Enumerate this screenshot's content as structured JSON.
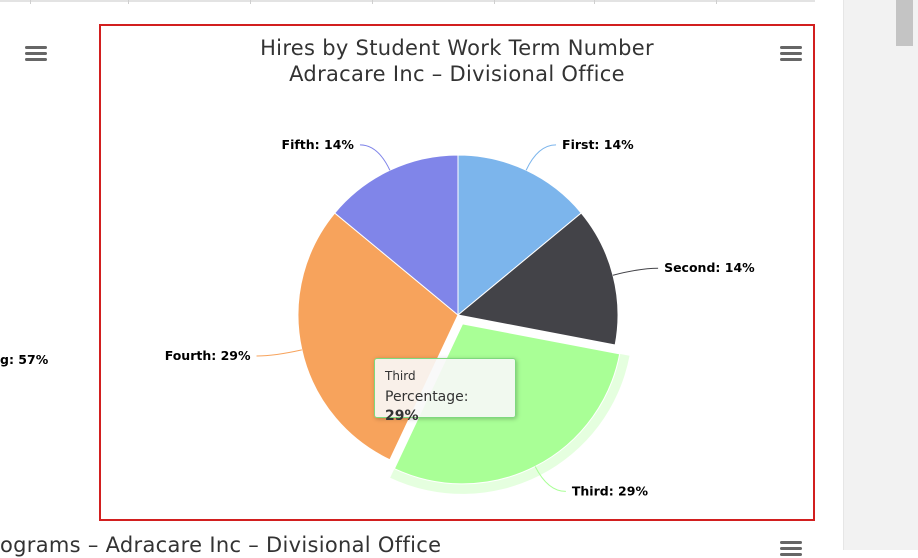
{
  "chart_data": {
    "type": "pie",
    "title": "Hires by Student Work Term Number",
    "subtitle": "Adracare Inc – Divisional Office",
    "slices": [
      {
        "name": "First",
        "value": 14,
        "color": "#7cb5ec"
      },
      {
        "name": "Second",
        "value": 14,
        "color": "#434348"
      },
      {
        "name": "Third",
        "value": 29,
        "color": "#a9ff96"
      },
      {
        "name": "Fourth",
        "value": 29,
        "color": "#f7a35c"
      },
      {
        "name": "Fifth",
        "value": 14,
        "color": "#8085e9"
      }
    ],
    "selected_slice": "Third",
    "label_format": "{name}: {value}%"
  },
  "tooltip": {
    "category": "Third",
    "series_label": "Percentage: ",
    "value": "29%"
  },
  "left_chart": {
    "partial_label": "g: 57%"
  },
  "bottom_chart": {
    "partial_title": "ograms – Adracare Inc – Divisional Office"
  },
  "icons": {
    "menu": "hamburger-menu-icon"
  }
}
